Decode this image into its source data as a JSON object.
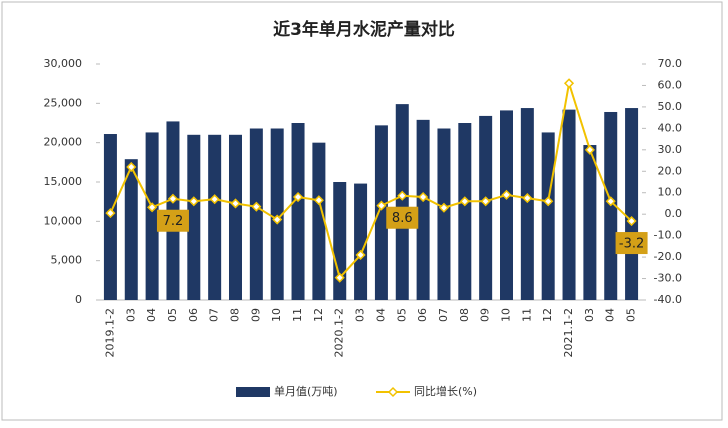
{
  "chart_data": {
    "type": "bar-line",
    "title": "近3年单月水泥产量对比",
    "categories": [
      "2019.1-2",
      "03",
      "04",
      "05",
      "06",
      "07",
      "08",
      "09",
      "10",
      "11",
      "12",
      "2020.1-2",
      "03",
      "04",
      "05",
      "06",
      "07",
      "08",
      "09",
      "10",
      "11",
      "12",
      "2021.1-2",
      "03",
      "04",
      "05"
    ],
    "series": [
      {
        "name": "单月值(万吨)",
        "type": "bar",
        "color": "#1f3864",
        "values": [
          21100,
          17900,
          21300,
          22700,
          21000,
          21000,
          21000,
          21800,
          21800,
          22500,
          20000,
          15000,
          14800,
          22200,
          24900,
          22900,
          21800,
          22500,
          23400,
          24100,
          24400,
          21300,
          24200,
          19700,
          23900,
          24400
        ]
      },
      {
        "name": "同比增长(%)",
        "type": "line",
        "axis": "y2",
        "color": "#f2c200",
        "values": [
          0.5,
          22,
          3.2,
          7.2,
          6,
          7,
          5,
          3.5,
          -2.5,
          8,
          6.5,
          -29.6,
          -19,
          4,
          8.6,
          8,
          3,
          6,
          6,
          9,
          7.5,
          6,
          61,
          30,
          6,
          -3.2
        ],
        "value_labels": [
          null,
          null,
          null,
          "7.2",
          null,
          null,
          null,
          null,
          null,
          null,
          null,
          null,
          null,
          null,
          "8.6",
          null,
          null,
          null,
          null,
          null,
          null,
          null,
          null,
          null,
          null,
          "-3.2"
        ]
      }
    ],
    "ylim": [
      0,
      30000
    ],
    "yticks": [
      0,
      {
        "value": 5000,
        "label": "5,000"
      },
      {
        "value": 10000,
        "label": "10,000"
      },
      {
        "value": 15000,
        "label": "15,000"
      },
      {
        "value": 20000,
        "label": "20,000"
      },
      {
        "value": 25000,
        "label": "25,000"
      },
      {
        "value": 30000,
        "label": "30,000"
      }
    ],
    "y2lim": [
      -40,
      70
    ],
    "y2ticks": [
      {
        "value": -40,
        "label": "-40.0"
      },
      {
        "value": -30,
        "label": "-30.0"
      },
      {
        "value": -20,
        "label": "-20.0"
      },
      {
        "value": -10,
        "label": "-10.0"
      },
      {
        "value": 0,
        "label": "0.0"
      },
      {
        "value": 10,
        "label": "10.0"
      },
      {
        "value": 20,
        "label": "20.0"
      },
      {
        "value": 30,
        "label": "30.0"
      },
      {
        "value": 40,
        "label": "40.0"
      },
      {
        "value": 50,
        "label": "50.0"
      },
      {
        "value": 60,
        "label": "60.0"
      },
      {
        "value": 70,
        "label": "70.0"
      }
    ],
    "legend": "bottom"
  }
}
